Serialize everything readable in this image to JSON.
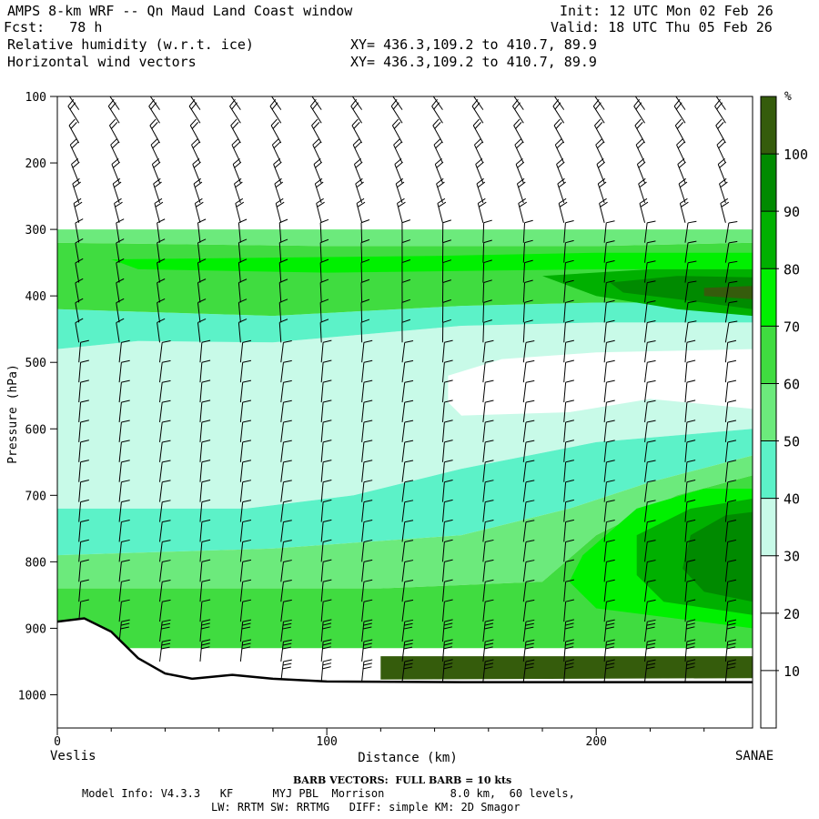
{
  "header": {
    "title": "AMPS 8-km WRF -- Qn Maud Land Coast window",
    "forecast": "Fcst:   78 h",
    "init": "Init: 12 UTC Mon 02 Feb 26",
    "valid": "Valid: 18 UTC Thu 05 Feb 26",
    "field1": "Relative humidity (w.r.t. ice)",
    "field2": "Horizontal wind vectors",
    "xy1": "XY= 436.3,109.2 to 410.7, 89.9",
    "xy2": "XY= 436.3,109.2 to 410.7, 89.9"
  },
  "footer": {
    "left_station": "Veslis",
    "right_station": "SANAE",
    "barb_note": "BARB VECTORS:  FULL BARB = 10 kts",
    "model_info_1": "Model Info: V4.3.3   KF      MYJ PBL  Morrison          8.0 km,  60 levels,",
    "model_info_2": "LW: RRTM SW: RRTMG   DIFF: simple KM: 2D Smagor"
  },
  "colorbar": {
    "unit": "%",
    "levels": [
      10,
      20,
      30,
      40,
      50,
      60,
      70,
      80,
      90,
      100
    ],
    "colors": [
      "#ffffff",
      "#ffffff",
      "#ffffff",
      "#c8fae8",
      "#5cf2c8",
      "#6cea7c",
      "#40dc40",
      "#00f000",
      "#00b000",
      "#008a00",
      "#355c0c"
    ]
  },
  "chart_data": {
    "type": "heatmap",
    "xlabel": "Distance (km)",
    "ylabel": "Pressure (hPa)",
    "xlim": [
      0,
      258
    ],
    "ylim": [
      100,
      1050
    ],
    "x_ticks": [
      0,
      100,
      200
    ],
    "y_ticks": [
      100,
      200,
      300,
      400,
      500,
      600,
      700,
      800,
      900,
      1000
    ],
    "terrain_surface_hPa": [
      {
        "x": 0,
        "p": 890
      },
      {
        "x": 10,
        "p": 885
      },
      {
        "x": 20,
        "p": 905
      },
      {
        "x": 30,
        "p": 945
      },
      {
        "x": 40,
        "p": 968
      },
      {
        "x": 50,
        "p": 976
      },
      {
        "x": 65,
        "p": 970
      },
      {
        "x": 80,
        "p": 976
      },
      {
        "x": 100,
        "p": 980
      },
      {
        "x": 150,
        "p": 981
      },
      {
        "x": 200,
        "p": 981
      },
      {
        "x": 258,
        "p": 981
      }
    ],
    "regions": [
      {
        "rh_range": "30-40",
        "points": [
          [
            0,
            480
          ],
          [
            30,
            468
          ],
          [
            80,
            470
          ],
          [
            150,
            445
          ],
          [
            200,
            440
          ],
          [
            258,
            440
          ],
          [
            258,
            600
          ],
          [
            200,
            620
          ],
          [
            150,
            660
          ],
          [
            110,
            700
          ],
          [
            70,
            720
          ],
          [
            0,
            720
          ]
        ]
      },
      {
        "rh_range": "<30",
        "points": [
          [
            145,
            520
          ],
          [
            165,
            495
          ],
          [
            200,
            485
          ],
          [
            258,
            480
          ],
          [
            258,
            570
          ],
          [
            220,
            555
          ],
          [
            190,
            575
          ],
          [
            150,
            580
          ],
          [
            145,
            560
          ]
        ]
      },
      {
        "rh_range": "40-50",
        "points": [
          [
            0,
            420
          ],
          [
            80,
            430
          ],
          [
            150,
            415
          ],
          [
            200,
            410
          ],
          [
            258,
            410
          ],
          [
            258,
            440
          ],
          [
            200,
            440
          ],
          [
            150,
            445
          ],
          [
            80,
            470
          ],
          [
            30,
            468
          ],
          [
            0,
            480
          ]
        ]
      },
      {
        "rh_range": "40-50",
        "points": [
          [
            0,
            720
          ],
          [
            70,
            720
          ],
          [
            110,
            700
          ],
          [
            150,
            660
          ],
          [
            200,
            620
          ],
          [
            258,
            600
          ],
          [
            258,
            640
          ],
          [
            220,
            680
          ],
          [
            190,
            720
          ],
          [
            150,
            760
          ],
          [
            80,
            780
          ],
          [
            0,
            790
          ]
        ]
      },
      {
        "rh_range": "50-60",
        "points": [
          [
            0,
            300
          ],
          [
            258,
            300
          ],
          [
            258,
            320
          ],
          [
            200,
            325
          ],
          [
            100,
            325
          ],
          [
            0,
            320
          ]
        ]
      },
      {
        "rh_range": "50-60",
        "points": [
          [
            0,
            790
          ],
          [
            80,
            780
          ],
          [
            150,
            760
          ],
          [
            190,
            720
          ],
          [
            220,
            680
          ],
          [
            258,
            640
          ],
          [
            258,
            670
          ],
          [
            230,
            700
          ],
          [
            200,
            760
          ],
          [
            180,
            830
          ],
          [
            120,
            840
          ],
          [
            0,
            840
          ]
        ]
      },
      {
        "rh_range": "60-70",
        "points": [
          [
            0,
            320
          ],
          [
            100,
            325
          ],
          [
            200,
            325
          ],
          [
            258,
            320
          ],
          [
            258,
            410
          ],
          [
            200,
            410
          ],
          [
            150,
            415
          ],
          [
            80,
            430
          ],
          [
            0,
            420
          ]
        ]
      },
      {
        "rh_range": "60-70",
        "points": [
          [
            0,
            840
          ],
          [
            120,
            840
          ],
          [
            180,
            830
          ],
          [
            200,
            760
          ],
          [
            230,
            700
          ],
          [
            258,
            670
          ],
          [
            258,
            930
          ],
          [
            0,
            930
          ]
        ]
      },
      {
        "rh_range": "70-80",
        "points": [
          [
            20,
            345
          ],
          [
            140,
            340
          ],
          [
            200,
            335
          ],
          [
            258,
            335
          ],
          [
            258,
            360
          ],
          [
            200,
            360
          ],
          [
            100,
            365
          ],
          [
            30,
            360
          ]
        ]
      },
      {
        "rh_range": "70-80",
        "points": [
          [
            195,
            790
          ],
          [
            215,
            720
          ],
          [
            240,
            690
          ],
          [
            258,
            690
          ],
          [
            258,
            900
          ],
          [
            200,
            870
          ],
          [
            190,
            830
          ]
        ]
      },
      {
        "rh_range": "80-90",
        "points": [
          [
            180,
            370
          ],
          [
            220,
            360
          ],
          [
            258,
            360
          ],
          [
            258,
            430
          ],
          [
            230,
            420
          ],
          [
            200,
            400
          ]
        ]
      },
      {
        "rh_range": "80-90",
        "points": [
          [
            215,
            760
          ],
          [
            235,
            720
          ],
          [
            258,
            705
          ],
          [
            258,
            880
          ],
          [
            225,
            860
          ],
          [
            215,
            820
          ]
        ]
      },
      {
        "rh_range": "90-100",
        "points": [
          [
            205,
            380
          ],
          [
            230,
            370
          ],
          [
            258,
            372
          ],
          [
            258,
            420
          ],
          [
            230,
            405
          ],
          [
            210,
            395
          ]
        ]
      },
      {
        "rh_range": "90-100",
        "points": [
          [
            235,
            760
          ],
          [
            248,
            730
          ],
          [
            258,
            725
          ],
          [
            258,
            860
          ],
          [
            240,
            845
          ],
          [
            232,
            810
          ]
        ]
      },
      {
        "rh_range": ">100",
        "points": [
          [
            240,
            388
          ],
          [
            258,
            385
          ],
          [
            258,
            405
          ],
          [
            240,
            400
          ]
        ]
      },
      {
        "rh_range": ">100",
        "points": [
          [
            120,
            942
          ],
          [
            258,
            942
          ],
          [
            258,
            975
          ],
          [
            120,
            977
          ]
        ]
      }
    ],
    "wind_barbs": {
      "columns_km": [
        8,
        23,
        38,
        53,
        68,
        83,
        98,
        113,
        128,
        143,
        158,
        173,
        188,
        203,
        218,
        233,
        248
      ],
      "levels_hPa": [
        120,
        140,
        170,
        200,
        230,
        260,
        290,
        320,
        350,
        380,
        410,
        440,
        470,
        500,
        530,
        560,
        590,
        620,
        650,
        680,
        710,
        740,
        770,
        800,
        830,
        860,
        890,
        920,
        950,
        980
      ],
      "full_barb_kts": 10
    }
  }
}
